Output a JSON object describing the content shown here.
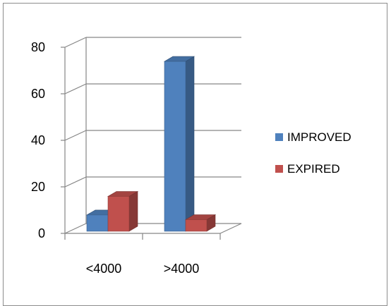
{
  "chart_data": {
    "type": "bar",
    "style": "3d-clustered-column",
    "categories": [
      "<4000",
      ">4000"
    ],
    "series": [
      {
        "name": "IMPROVED",
        "values": [
          7,
          73
        ],
        "color": "#4F81BD"
      },
      {
        "name": "EXPIRED",
        "values": [
          15,
          5
        ],
        "color": "#C0504D"
      }
    ],
    "ylim": [
      0,
      80
    ],
    "yticks": [
      0,
      20,
      40,
      60,
      80
    ],
    "grid": true,
    "legend": "right"
  }
}
